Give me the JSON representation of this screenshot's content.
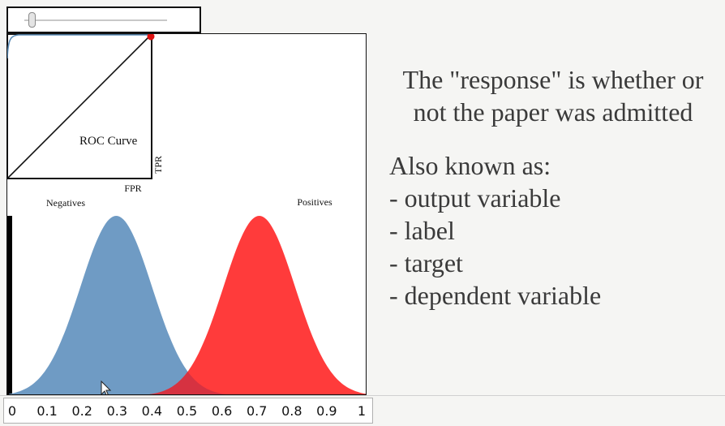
{
  "slider": {
    "value": 0.05
  },
  "plot": {
    "roc_label": "ROC Curve",
    "fpr_label": "FPR",
    "tpr_label": "TPR",
    "negatives_label": "Negatives",
    "positives_label": "Positives",
    "colors": {
      "negatives": "#6f9bc4",
      "positives": "#ff3b3b",
      "overlap": "#d63241",
      "roc_curve": "#5b8db8",
      "roc_marker": "#dd1111"
    }
  },
  "axis": {
    "ticks": [
      "0",
      "0.1",
      "0.2",
      "0.3",
      "0.4",
      "0.5",
      "0.6",
      "0.7",
      "0.8",
      "0.9",
      "1"
    ]
  },
  "text": {
    "response_line1": "The \"response\" is whether or",
    "response_line2": "not the paper was admitted",
    "aka_heading": "Also known as:",
    "aka_items": [
      "- output variable",
      "- label",
      "- target",
      "- dependent variable"
    ]
  },
  "chart_data": {
    "type": "area",
    "xlim": [
      0,
      1
    ],
    "x_ticks": [
      "0",
      "0.1",
      "0.2",
      "0.3",
      "0.4",
      "0.5",
      "0.6",
      "0.7",
      "0.8",
      "0.9",
      "1"
    ],
    "series": [
      {
        "name": "Negatives",
        "mean": 0.3,
        "sd": 0.1,
        "color": "#6f9bc4"
      },
      {
        "name": "Positives",
        "mean": 0.7,
        "sd": 0.1,
        "color": "#ff3b3b"
      }
    ],
    "threshold": 0.0,
    "roc": {
      "title": "ROC Curve",
      "xlabel": "FPR",
      "ylabel": "TPR",
      "marker": [
        1,
        1
      ]
    }
  }
}
